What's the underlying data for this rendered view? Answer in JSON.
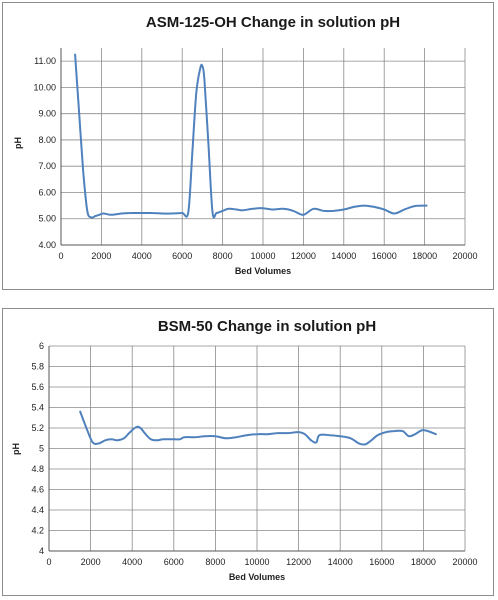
{
  "chart_data": [
    {
      "type": "line",
      "title": "ASM-125-OH Change in solution pH",
      "xlabel": "Bed Volumes",
      "ylabel": "pH",
      "xlim": [
        0,
        20000
      ],
      "ylim": [
        4.0,
        11.5
      ],
      "xticks": [
        0,
        2000,
        4000,
        6000,
        8000,
        10000,
        12000,
        14000,
        16000,
        18000,
        20000
      ],
      "xtick_labels": [
        "0",
        "2000",
        "4000",
        "6000",
        "8000",
        "10000",
        "12000",
        "14000",
        "16000",
        "18000",
        "20000"
      ],
      "yticks": [
        4,
        5,
        6,
        7,
        8,
        9,
        10,
        11
      ],
      "ytick_labels": [
        "4.00",
        "5.00",
        "6.00",
        "7.00",
        "8.00",
        "9.00",
        "10.00",
        "11.00"
      ],
      "grid": true,
      "line_color": "#4f81bd",
      "series": [
        {
          "x": [
            700,
            900,
            1100,
            1300,
            1500,
            1700,
            1900,
            2100,
            2500,
            3000,
            3500,
            4000,
            4500,
            5000,
            5500,
            6000,
            6300,
            6500,
            6700,
            6900,
            7000,
            7100,
            7300,
            7500,
            7700,
            8000,
            8300,
            8700,
            9000,
            9500,
            10000,
            10500,
            11000,
            11500,
            12000,
            12500,
            13000,
            13500,
            14000,
            14500,
            15000,
            15500,
            16000,
            16500,
            17000,
            17500,
            18100
          ],
          "y": [
            11.25,
            9.0,
            6.8,
            5.3,
            5.05,
            5.1,
            5.15,
            5.2,
            5.15,
            5.2,
            5.22,
            5.22,
            5.22,
            5.2,
            5.2,
            5.22,
            5.25,
            7.5,
            9.8,
            10.75,
            10.8,
            10.3,
            7.8,
            5.25,
            5.22,
            5.3,
            5.38,
            5.35,
            5.32,
            5.38,
            5.4,
            5.35,
            5.38,
            5.3,
            5.15,
            5.38,
            5.3,
            5.3,
            5.35,
            5.45,
            5.5,
            5.45,
            5.35,
            5.2,
            5.35,
            5.48,
            5.5
          ]
        }
      ]
    },
    {
      "type": "line",
      "title": "BSM-50 Change in solution pH",
      "xlabel": "Bed Volumes",
      "ylabel": "pH",
      "xlim": [
        0,
        20000
      ],
      "ylim": [
        4,
        6
      ],
      "xticks": [
        0,
        2000,
        4000,
        6000,
        8000,
        10000,
        12000,
        14000,
        16000,
        18000,
        20000
      ],
      "xtick_labels": [
        "0",
        "2000",
        "4000",
        "6000",
        "8000",
        "10000",
        "12000",
        "14000",
        "16000",
        "18000",
        "20000"
      ],
      "yticks": [
        4,
        4.2,
        4.4,
        4.6,
        4.8,
        5,
        5.2,
        5.4,
        5.6,
        5.8,
        6
      ],
      "ytick_labels": [
        "4",
        "4.2",
        "4.4",
        "4.6",
        "4.8",
        "5",
        "5.2",
        "5.4",
        "5.6",
        "5.8",
        "6"
      ],
      "grid": true,
      "line_color": "#4f81bd",
      "series": [
        {
          "x": [
            1500,
            1800,
            2100,
            2400,
            2700,
            3000,
            3300,
            3600,
            3900,
            4200,
            4400,
            4600,
            4900,
            5200,
            5500,
            6000,
            6300,
            6500,
            7000,
            7500,
            8000,
            8500,
            9000,
            9500,
            10000,
            10500,
            11000,
            11500,
            12000,
            12300,
            12600,
            12850,
            13000,
            13500,
            14000,
            14500,
            14900,
            15200,
            15500,
            15800,
            16200,
            16600,
            17000,
            17300,
            17600,
            18000,
            18600
          ],
          "y": [
            5.36,
            5.2,
            5.06,
            5.05,
            5.08,
            5.09,
            5.08,
            5.1,
            5.16,
            5.21,
            5.2,
            5.15,
            5.09,
            5.08,
            5.09,
            5.09,
            5.09,
            5.11,
            5.11,
            5.12,
            5.12,
            5.1,
            5.11,
            5.13,
            5.14,
            5.14,
            5.15,
            5.15,
            5.16,
            5.14,
            5.08,
            5.06,
            5.13,
            5.13,
            5.12,
            5.1,
            5.05,
            5.04,
            5.08,
            5.13,
            5.16,
            5.17,
            5.17,
            5.12,
            5.14,
            5.18,
            5.14
          ]
        }
      ]
    }
  ]
}
